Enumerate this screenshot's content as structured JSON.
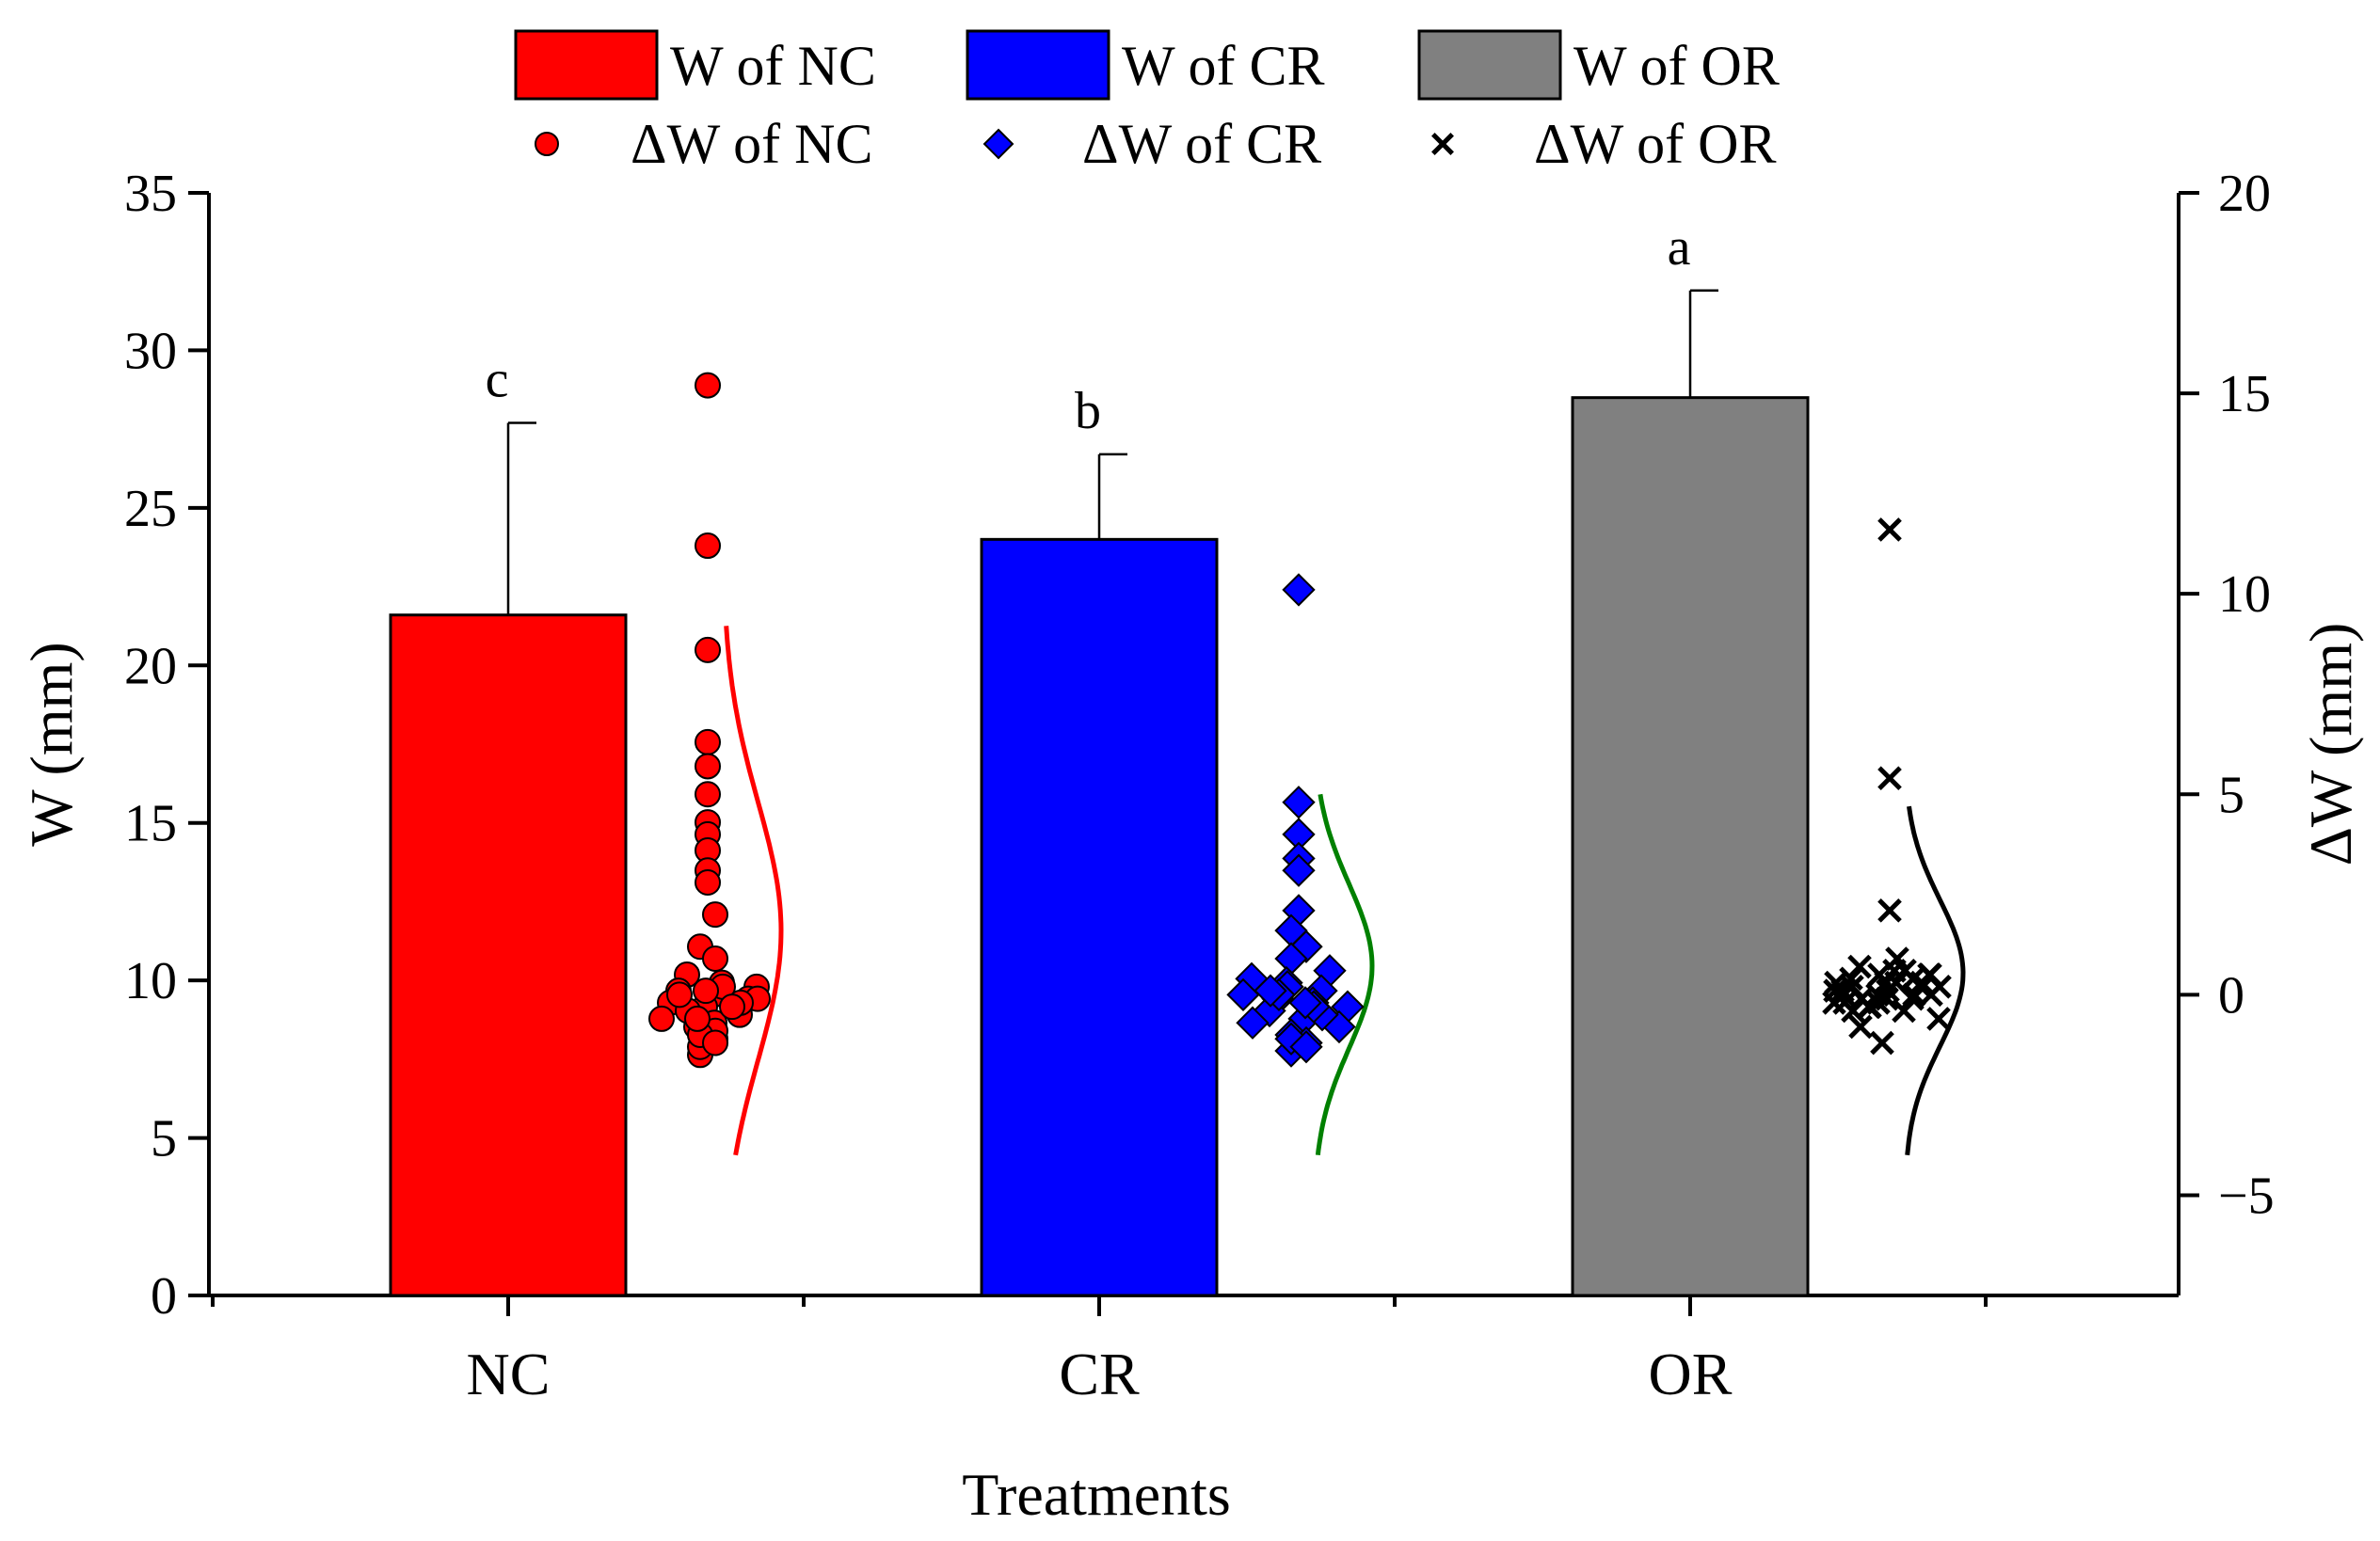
{
  "chart_data": {
    "type": "bar",
    "categories": [
      "NC",
      "CR",
      "OR"
    ],
    "xlabel": "Treatments",
    "ylabel": "W (mm)",
    "y2label": "ΔW (mm)",
    "ylim": [
      0,
      35
    ],
    "yticks": [
      0,
      5,
      10,
      15,
      20,
      25,
      30,
      35
    ],
    "y2lim": [
      -7.5,
      20
    ],
    "y2ticks": [
      -5,
      0,
      5,
      10,
      15,
      20
    ],
    "y2tick_labels": [
      "−5",
      "0",
      "5",
      "10",
      "15",
      "20"
    ],
    "legend_position": "top",
    "series": [
      {
        "name": "W of NC",
        "category": "NC",
        "color": "#ff0000",
        "value": 21.6,
        "error": 6.1,
        "letter": "c"
      },
      {
        "name": "W of CR",
        "category": "CR",
        "color": "#0000ff",
        "value": 24.0,
        "error": 2.7,
        "letter": "b"
      },
      {
        "name": "W of OR",
        "category": "OR",
        "color": "#808080",
        "value": 28.5,
        "error": 3.4,
        "letter": "a"
      }
    ],
    "delta_series": [
      {
        "name": "ΔW of NC",
        "category": "NC",
        "marker": "circle",
        "color": "#ff0000",
        "curve_color": "#ff0000",
        "curve_range": [
          -4.0,
          9.2
        ],
        "values": [
          15.2,
          11.2,
          8.6,
          6.3,
          5.7,
          5.0,
          4.3,
          4.0,
          3.6,
          3.1,
          2.8,
          2.0,
          1.2,
          0.9,
          0.5,
          0.3,
          0.2,
          0.1,
          0.0,
          -0.1,
          -0.2,
          -0.3,
          -0.5,
          -0.6,
          -0.8,
          -1.1,
          -1.5,
          -0.4,
          0.2,
          -0.1,
          0.0,
          -0.7,
          -1.3,
          -0.9,
          0.1,
          -0.2,
          -1.0,
          -0.6,
          -0.3,
          -1.2
        ]
      },
      {
        "name": "ΔW of CR",
        "category": "CR",
        "marker": "diamond",
        "color": "#0000ff",
        "curve_color": "#008000",
        "curve_range": [
          -4.0,
          5.0
        ],
        "values": [
          10.1,
          4.8,
          4.0,
          3.4,
          3.1,
          2.1,
          1.6,
          1.2,
          0.9,
          0.6,
          0.4,
          0.3,
          0.1,
          0.0,
          -0.1,
          -0.2,
          -0.3,
          -0.4,
          -0.6,
          -0.8,
          -1.0,
          -1.2,
          -1.4,
          -0.7,
          0.2,
          -0.5,
          -1.1,
          0.0,
          -0.3,
          -1.3,
          0.1,
          -0.2
        ]
      },
      {
        "name": "ΔW of OR",
        "category": "OR",
        "marker": "x",
        "color": "#000000",
        "curve_color": "#000000",
        "curve_range": [
          -4.0,
          4.7
        ],
        "values": [
          11.6,
          5.4,
          2.1,
          0.9,
          0.7,
          0.6,
          0.5,
          0.4,
          0.3,
          0.2,
          0.1,
          0.0,
          -0.1,
          -0.2,
          -0.3,
          -0.4,
          -0.6,
          -0.8,
          -1.2,
          0.5,
          0.2,
          -0.1,
          0.3,
          0.0,
          -0.2,
          0.4,
          0.1,
          -0.3,
          0.6,
          0.2,
          -0.1,
          0.3,
          0.0,
          -0.4,
          0.1,
          0.2,
          -0.2,
          0.5,
          0.0,
          0.3
        ]
      }
    ]
  }
}
